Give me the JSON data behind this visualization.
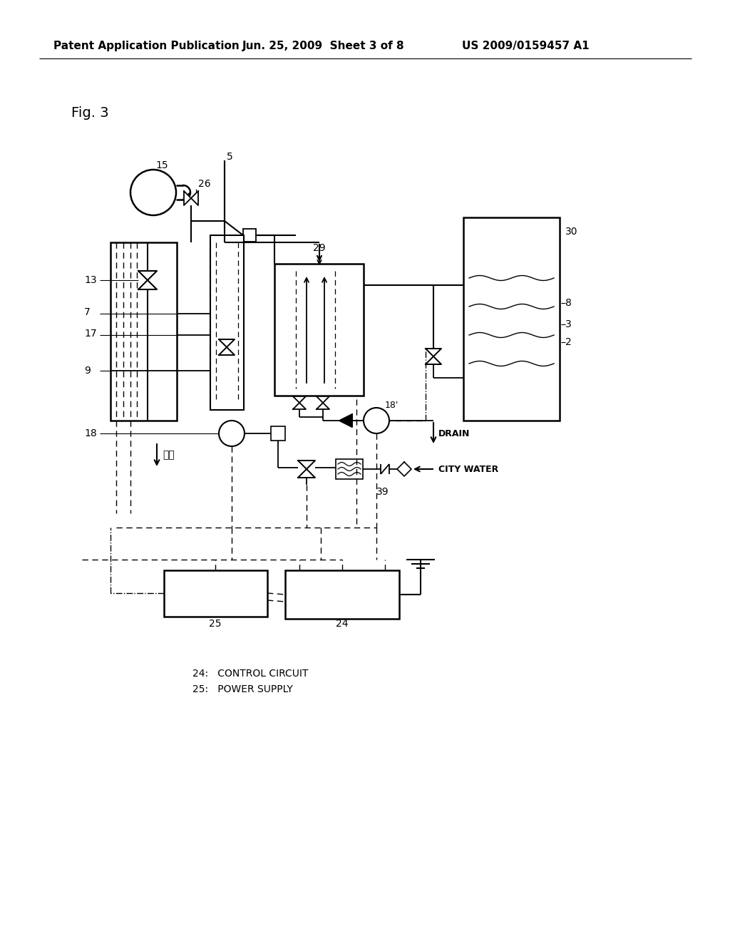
{
  "title_header_left": "Patent Application Publication",
  "title_header_mid": "Jun. 25, 2009  Sheet 3 of 8",
  "title_header_right": "US 2009/0159457 A1",
  "fig_label": "Fig. 3",
  "legend_24": "24:   CONTROL CIRCUIT",
  "legend_25": "25:   POWER SUPPLY",
  "bg_color": "#ffffff",
  "line_color": "#000000"
}
